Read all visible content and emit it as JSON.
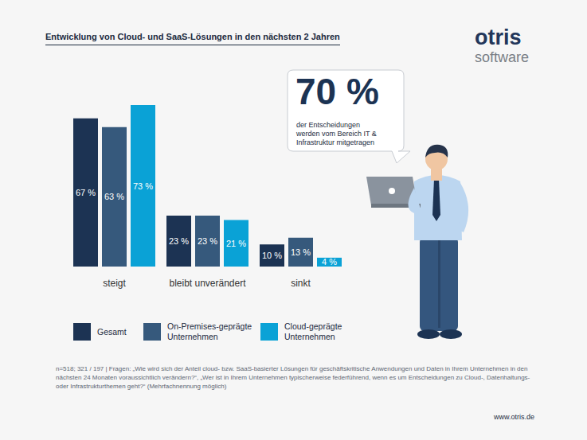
{
  "chart_data": {
    "type": "bar",
    "title": "Entwicklung von Cloud- und SaaS-Lösungen in den nächsten 2 Jahren",
    "categories": [
      "steigt",
      "bleibt unverändert",
      "sinkt"
    ],
    "series": [
      {
        "name": "Gesamt",
        "color": "#1c3353",
        "values": [
          67,
          23,
          10
        ],
        "value_labels": [
          "67 %",
          "23 %",
          "10 %"
        ]
      },
      {
        "name": "On-Premises-geprägte Unternehmen",
        "color": "#36597c",
        "values": [
          63,
          23,
          13
        ],
        "value_labels": [
          "63 %",
          "23 %",
          "13 %"
        ]
      },
      {
        "name": "Cloud-geprägte Unternehmen",
        "color": "#0aa2d6",
        "values": [
          73,
          21,
          4
        ],
        "value_labels": [
          "73 %",
          "21 %",
          "4 %"
        ]
      }
    ],
    "ylim": [
      0,
      73
    ],
    "grid": false,
    "tick_labels": "x",
    "data_labels": true,
    "legend": "bottom left"
  },
  "logo": {
    "name": "otris",
    "sub": "software"
  },
  "callout": {
    "headline": "70 %",
    "lines": [
      "der Entscheidungen",
      "werden vom Bereich IT &",
      "Infrastruktur mitgetragen"
    ]
  },
  "footnote": "n=518; 321 / 197 | Fragen: „Wie wird sich der Anteil cloud- bzw. SaaS-basierter Lösungen für geschäftskritische Anwendungen und Daten in Ihrem Unternehmen in den nächsten 24 Monaten voraussichtlich verändern?“, „Wer ist in Ihrem Unternehmen typischerweise federführend, wenn es um Entscheidungen zu Cloud-, Datenhaltungs- oder Infrastrukturthemen geht?“ (Mehrfachnennung möglich)",
  "website": "www.otris.de"
}
